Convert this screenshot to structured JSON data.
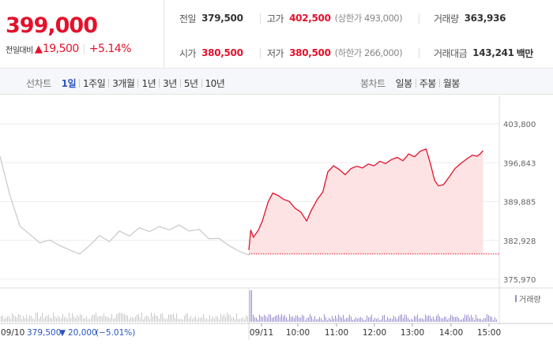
{
  "price": {
    "current": "399,000",
    "change_label": "전일대비",
    "change_arrow": "▲",
    "change_value": "19,500",
    "change_rate": "+5.14%"
  },
  "stats": {
    "prev_close": {
      "label": "전일",
      "value": "379,500"
    },
    "high": {
      "label": "고가",
      "value": "402,500",
      "limit": "(상한가 493,000)"
    },
    "volume": {
      "label": "거래량",
      "value": "363,936"
    },
    "open": {
      "label": "시가",
      "value": "380,500"
    },
    "low": {
      "label": "저가",
      "value": "380,500",
      "limit": "(하한가 266,000)"
    },
    "trade_amount": {
      "label": "거래대금",
      "value": "143,241",
      "unit": "백만"
    }
  },
  "line_tabs": {
    "title": "선차트",
    "items": [
      "1일",
      "1주일",
      "3개월",
      "1년",
      "3년",
      "5년",
      "10년"
    ],
    "active": "1일"
  },
  "candle_tabs": {
    "title": "봉차트",
    "items": [
      "일봉",
      "주봉",
      "월봉"
    ]
  },
  "chart_data": {
    "type": "line",
    "y_ticks": [
      "403,800",
      "396,843",
      "389,885",
      "382,928",
      "375,970"
    ],
    "ylim": [
      375970,
      403800
    ],
    "x_ticks": [
      "09/11",
      "10:00",
      "11:00",
      "12:00",
      "13:00",
      "14:00",
      "15:00"
    ],
    "prev_day": {
      "date": "09/10",
      "close": "379,500",
      "change_arrow": "▼",
      "change": "20,000",
      "rate": "(−5.01%)"
    },
    "volume_legend": "거래량",
    "baseline_value": 380500,
    "prev_day_series": [
      [
        0,
        398000
      ],
      [
        0.04,
        391000
      ],
      [
        0.08,
        385500
      ],
      [
        0.12,
        384000
      ],
      [
        0.16,
        382500
      ],
      [
        0.2,
        383000
      ],
      [
        0.24,
        382000
      ],
      [
        0.28,
        381200
      ],
      [
        0.32,
        380500
      ],
      [
        0.36,
        382000
      ],
      [
        0.4,
        383800
      ],
      [
        0.44,
        382700
      ],
      [
        0.48,
        384600
      ],
      [
        0.52,
        383700
      ],
      [
        0.56,
        385200
      ],
      [
        0.6,
        384500
      ],
      [
        0.64,
        385400
      ],
      [
        0.68,
        384800
      ],
      [
        0.72,
        385700
      ],
      [
        0.76,
        384600
      ],
      [
        0.8,
        384900
      ],
      [
        0.84,
        383200
      ],
      [
        0.88,
        383300
      ],
      [
        0.92,
        382000
      ],
      [
        0.96,
        381000
      ],
      [
        1,
        380300
      ]
    ],
    "today_series": [
      [
        9.0,
        381200
      ],
      [
        9.05,
        384800
      ],
      [
        9.12,
        383500
      ],
      [
        9.25,
        384800
      ],
      [
        9.35,
        386400
      ],
      [
        9.5,
        389800
      ],
      [
        9.62,
        391400
      ],
      [
        9.75,
        391000
      ],
      [
        9.9,
        390300
      ],
      [
        10.05,
        389900
      ],
      [
        10.2,
        388700
      ],
      [
        10.35,
        388000
      ],
      [
        10.5,
        386400
      ],
      [
        10.62,
        388300
      ],
      [
        10.78,
        390300
      ],
      [
        10.92,
        391600
      ],
      [
        11.05,
        395200
      ],
      [
        11.2,
        396300
      ],
      [
        11.35,
        395600
      ],
      [
        11.5,
        394700
      ],
      [
        11.65,
        395800
      ],
      [
        11.8,
        396200
      ],
      [
        11.95,
        395900
      ],
      [
        12.1,
        396600
      ],
      [
        12.25,
        396300
      ],
      [
        12.4,
        397100
      ],
      [
        12.55,
        396700
      ],
      [
        12.7,
        397400
      ],
      [
        12.85,
        397800
      ],
      [
        13.0,
        397200
      ],
      [
        13.15,
        398400
      ],
      [
        13.3,
        397900
      ],
      [
        13.45,
        398900
      ],
      [
        13.6,
        399300
      ],
      [
        13.72,
        396500
      ],
      [
        13.82,
        393700
      ],
      [
        13.92,
        392700
      ],
      [
        14.05,
        392900
      ],
      [
        14.2,
        394300
      ],
      [
        14.35,
        395800
      ],
      [
        14.5,
        396700
      ],
      [
        14.65,
        397500
      ],
      [
        14.8,
        398200
      ],
      [
        14.92,
        398000
      ],
      [
        15.0,
        398400
      ],
      [
        15.08,
        399000
      ]
    ],
    "session_hours": [
      9,
      15.5
    ]
  },
  "colors": {
    "up": "#e3112b",
    "down": "#2a55c5",
    "area_fill": "#fde3e4",
    "prev_line": "#c8c8c8",
    "volume_bar": "#9c8ccf",
    "prev_volume_bar": "#c9c9c9"
  }
}
